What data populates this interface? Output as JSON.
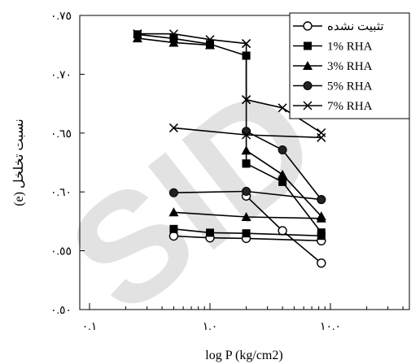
{
  "chart_data": {
    "type": "line",
    "xlabel": "log P (kg/cm2)",
    "ylabel": "نسبت تخلخل (e)",
    "x_scale": "log",
    "xlim": [
      0.1,
      40
    ],
    "ylim": [
      0.5,
      0.75
    ],
    "xticks": [
      "٠.١",
      "١.٠",
      "١٠.٠"
    ],
    "xtick_values": [
      0.1,
      1,
      10
    ],
    "yticks": [
      "٠.٥٠",
      "٠.٥٥",
      "٠.٦٠",
      "٠.٦٥",
      "٠.٧٠",
      "٠.٧٥"
    ],
    "ytick_values": [
      0.5,
      0.55,
      0.6,
      0.65,
      0.7,
      0.75
    ],
    "grid": false,
    "legend": "top-right",
    "series": [
      {
        "name": "تثبیت نشده",
        "marker": "circle-open",
        "segments": [
          [
            [
              0.5,
              0.5625
            ],
            [
              1,
              0.561
            ],
            [
              2,
              0.5605
            ],
            [
              8.4,
              0.5585
            ]
          ],
          [
            [
              2,
              0.5965
            ],
            [
              4,
              0.567
            ],
            [
              8.4,
              0.5395
            ]
          ]
        ]
      },
      {
        "name": "1% RHA",
        "marker": "square",
        "segments": [
          [
            [
              0.25,
              0.7339
            ],
            [
              0.5,
              0.7304
            ],
            [
              1,
              0.7256
            ],
            [
              2,
              0.7158
            ]
          ],
          [
            [
              2,
              0.7158
            ],
            [
              2,
              0.6241
            ]
          ],
          [
            [
              2,
              0.6241
            ],
            [
              4,
              0.6085
            ],
            [
              8.4,
              0.5655
            ]
          ],
          [
            [
              0.5,
              0.5685
            ],
            [
              1,
              0.5653
            ],
            [
              2,
              0.5648
            ],
            [
              8.4,
              0.5627
            ]
          ]
        ]
      },
      {
        "name": "3% RHA",
        "marker": "triangle",
        "segments": [
          [
            [
              0.25,
              0.7306
            ],
            [
              0.5,
              0.7269
            ],
            [
              1,
              0.7248
            ]
          ],
          [
            [
              2,
              0.6352
            ],
            [
              4,
              0.6147
            ],
            [
              8.4,
              0.5793
            ]
          ],
          [
            [
              0.5,
              0.5827
            ],
            [
              2,
              0.5787
            ],
            [
              8.4,
              0.5775
            ]
          ]
        ]
      },
      {
        "name": "5% RHA",
        "marker": "circle-filled",
        "segments": [
          [
            [
              2,
              0.6515
            ],
            [
              4,
              0.6357
            ],
            [
              8.4,
              0.5935
            ]
          ],
          [
            [
              0.5,
              0.5993
            ],
            [
              2,
              0.6005
            ],
            [
              8.4,
              0.5935
            ]
          ]
        ]
      },
      {
        "name": "7% RHA",
        "marker": "x",
        "segments": [
          [
            [
              0.25,
              0.7344
            ],
            [
              0.5,
              0.7343
            ],
            [
              1,
              0.7295
            ],
            [
              2,
              0.7261
            ]
          ],
          [
            [
              2,
              0.7261
            ],
            [
              2,
              0.6784
            ]
          ],
          [
            [
              2,
              0.6784
            ],
            [
              4,
              0.6714
            ],
            [
              8.4,
              0.6503
            ]
          ],
          [
            [
              0.5,
              0.6544
            ],
            [
              2,
              0.6485
            ],
            [
              8.4,
              0.6462
            ]
          ]
        ]
      }
    ]
  },
  "watermark": {
    "text": "SID"
  }
}
